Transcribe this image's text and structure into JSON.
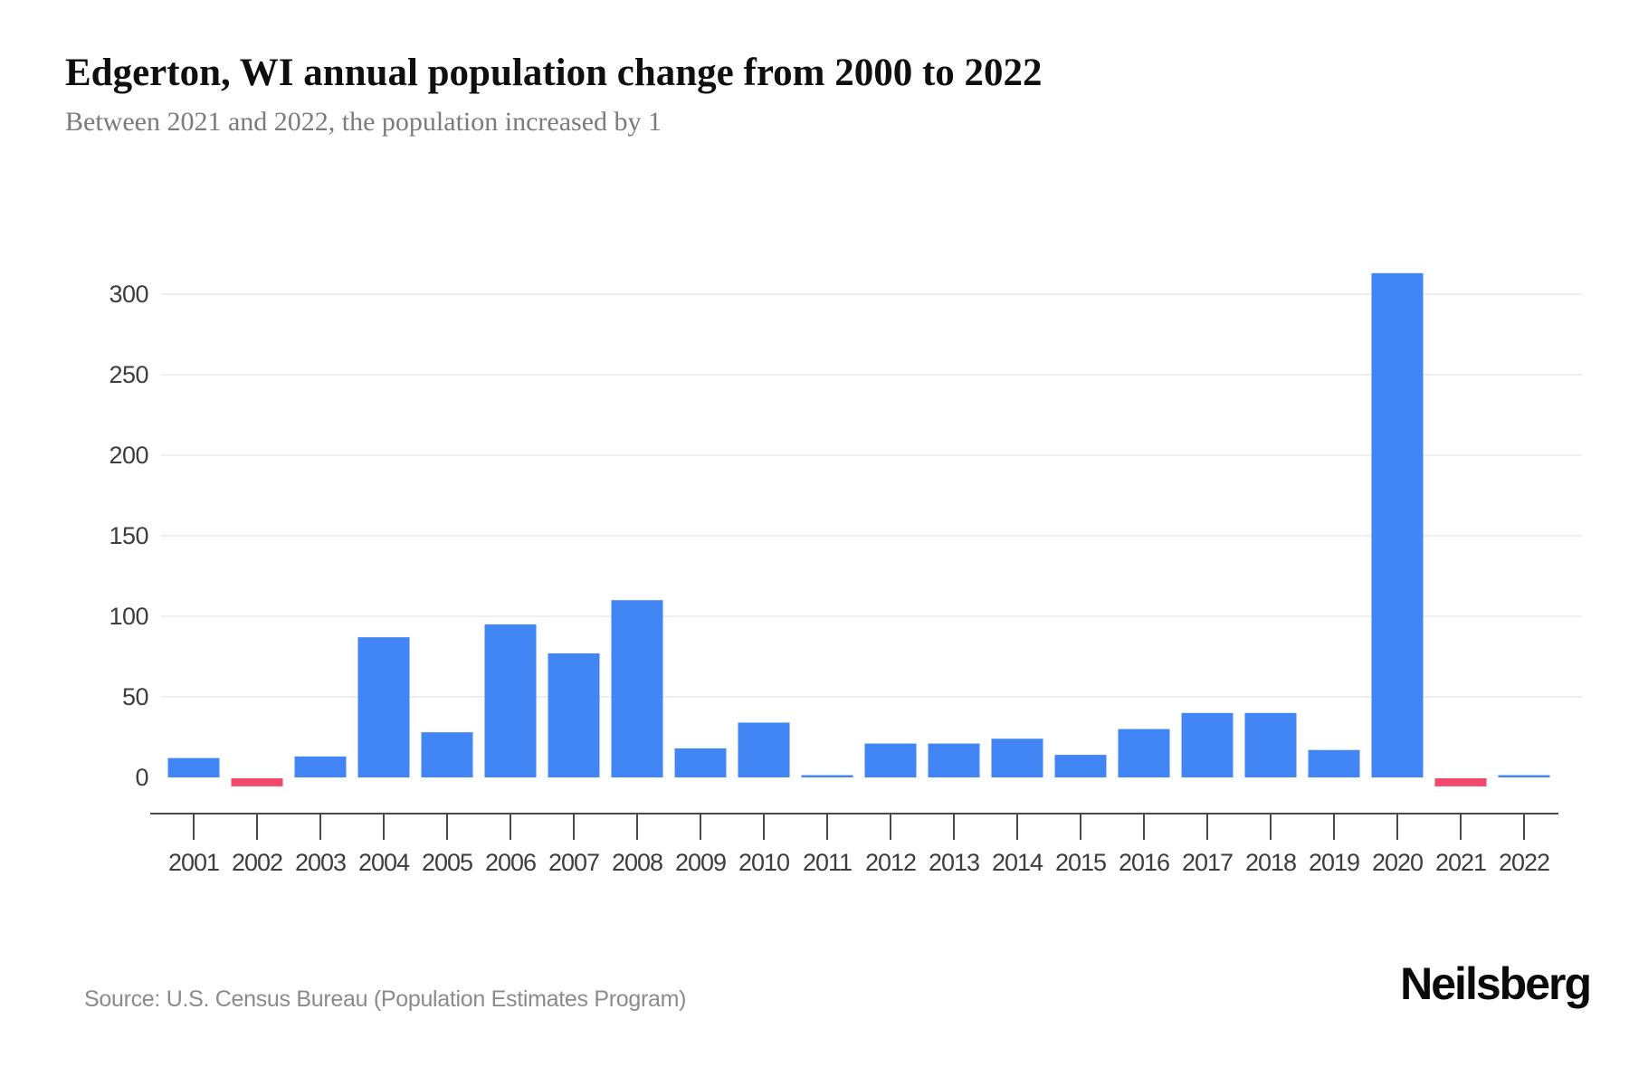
{
  "header": {
    "title": "Edgerton, WI annual population change from 2000 to 2022",
    "subtitle": "Between 2021 and 2022, the population increased by 1"
  },
  "footer": {
    "source": "Source: U.S. Census Bureau (Population Estimates Program)",
    "brand": "Neilsberg"
  },
  "chart_data": {
    "type": "bar",
    "title": "Edgerton, WI annual population change from 2000 to 2022",
    "categories": [
      "2001",
      "2002",
      "2003",
      "2004",
      "2005",
      "2006",
      "2007",
      "2008",
      "2009",
      "2010",
      "2011",
      "2012",
      "2013",
      "2014",
      "2015",
      "2016",
      "2017",
      "2018",
      "2019",
      "2020",
      "2021",
      "2022"
    ],
    "values": [
      12,
      -5,
      13,
      87,
      28,
      95,
      77,
      110,
      18,
      34,
      1,
      21,
      21,
      24,
      14,
      30,
      40,
      40,
      17,
      313,
      -5,
      1
    ],
    "xlabel": "",
    "ylabel": "",
    "yticks": [
      0,
      50,
      100,
      150,
      200,
      250,
      300
    ],
    "ylim": [
      -20,
      350
    ],
    "grid": true,
    "legend": false,
    "colors": {
      "positive": "#4285f4",
      "negative": "#f4486b"
    },
    "grid_color": "#efefef",
    "axis_color": "#4a4a4a",
    "tick_label_color": "#3d3d3d"
  }
}
